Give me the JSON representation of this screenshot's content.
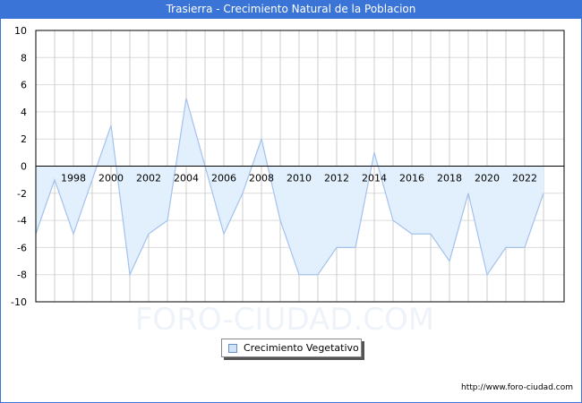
{
  "header": {
    "title": "Trasierra - Crecimiento Natural de la Poblacion"
  },
  "footer": {
    "url": "http://www.foro-ciudad.com"
  },
  "watermark": "FORO-CIUDAD.COM",
  "legend": {
    "items": [
      {
        "label": "Crecimiento Vegetativo",
        "color": "#cfe4f8"
      }
    ]
  },
  "colors": {
    "title_bar": "#3a74d6",
    "line": "#a3c2ec",
    "fill": "#e2effc"
  },
  "chart_data": {
    "type": "area",
    "title": "Trasierra - Crecimiento Natural de la Poblacion",
    "xlabel": "",
    "ylabel": "",
    "ylim": [
      -10,
      10
    ],
    "yticks": [
      10,
      8,
      6,
      4,
      2,
      0,
      -2,
      -4,
      -6,
      -8,
      -10
    ],
    "xtick_labels": [
      "1998",
      "2000",
      "2002",
      "2004",
      "2006",
      "2008",
      "2010",
      "2012",
      "2014",
      "2016",
      "2018",
      "2020",
      "2022"
    ],
    "grid": true,
    "legend_position": "bottom",
    "x": [
      1996,
      1997,
      1998,
      1999,
      2000,
      2001,
      2002,
      2003,
      2004,
      2005,
      2006,
      2007,
      2008,
      2009,
      2010,
      2011,
      2012,
      2013,
      2014,
      2015,
      2016,
      2017,
      2018,
      2019,
      2020,
      2021,
      2022,
      2023
    ],
    "series": [
      {
        "name": "Crecimiento Vegetativo",
        "values": [
          -5,
          -1,
          -5,
          -1,
          3,
          -8,
          -5,
          -4,
          5,
          0,
          -5,
          -2,
          2,
          -4,
          -8,
          -8,
          -6,
          -6,
          1,
          -4,
          -5,
          -5,
          -7,
          -2,
          -8,
          -6,
          -6,
          -2
        ]
      }
    ]
  }
}
